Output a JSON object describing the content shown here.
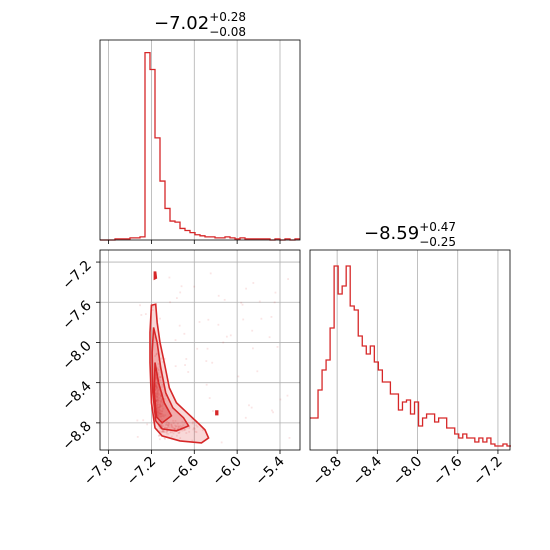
{
  "chart_data": {
    "type": "corner",
    "color": "#d62728",
    "grid": true,
    "panels": [
      {
        "id": "hist_p1",
        "type": "histogram",
        "title": {
          "main": "−7.02",
          "sup": "+0.28",
          "sub": "−0.08"
        },
        "xlim": [
          -7.92,
          -5.12
        ],
        "ticks": [
          -7.8,
          -7.2,
          -6.6,
          -6.0,
          -5.4
        ],
        "bin_edges": [
          -7.92,
          -7.85,
          -7.78,
          -7.71,
          -7.64,
          -7.57,
          -7.5,
          -7.43,
          -7.36,
          -7.29,
          -7.22,
          -7.15,
          -7.08,
          -7.01,
          -6.94,
          -6.87,
          -6.8,
          -6.73,
          -6.66,
          -6.59,
          -6.52,
          -6.45,
          -6.38,
          -6.31,
          -6.24,
          -6.17,
          -6.1,
          -6.03,
          -5.96,
          -5.89,
          -5.82,
          -5.75,
          -5.68,
          -5.61,
          -5.54,
          -5.47,
          -5.4,
          -5.33,
          -5.26,
          -5.19,
          -5.12
        ],
        "counts": [
          0,
          0,
          0,
          1,
          1,
          1,
          2,
          2,
          3,
          178,
          162,
          97,
          56,
          30,
          18,
          17,
          11,
          9,
          7,
          5,
          4,
          3,
          3,
          2,
          2,
          3,
          2,
          1,
          2,
          1,
          1,
          1,
          1,
          1,
          0,
          1,
          0,
          1,
          0,
          1
        ],
        "ymax": 190
      },
      {
        "id": "hist_p2",
        "type": "histogram",
        "title": {
          "main": "−8.59",
          "sup": "+0.47",
          "sub": "−0.25"
        },
        "xlim": [
          -9.07,
          -7.08
        ],
        "ticks": [
          -8.8,
          -8.4,
          -8.0,
          -7.6,
          -7.2
        ],
        "bin_edges": [
          -9.07,
          -9.03,
          -8.99,
          -8.95,
          -8.91,
          -8.87,
          -8.83,
          -8.79,
          -8.75,
          -8.71,
          -8.67,
          -8.63,
          -8.59,
          -8.55,
          -8.51,
          -8.47,
          -8.43,
          -8.39,
          -8.35,
          -8.31,
          -8.27,
          -8.23,
          -8.19,
          -8.15,
          -8.11,
          -8.07,
          -8.03,
          -7.99,
          -7.95,
          -7.91,
          -7.87,
          -7.83,
          -7.79,
          -7.75,
          -7.71,
          -7.67,
          -7.63,
          -7.59,
          -7.55,
          -7.51,
          -7.47,
          -7.43,
          -7.39,
          -7.35,
          -7.31,
          -7.27,
          -7.23,
          -7.19,
          -7.15,
          -7.11,
          -7.07
        ],
        "counts": [
          16,
          16,
          30,
          40,
          45,
          61,
          92,
          78,
          82,
          92,
          72,
          70,
          57,
          52,
          48,
          52,
          44,
          40,
          34,
          34,
          28,
          28,
          20,
          24,
          25,
          18,
          24,
          12,
          16,
          18,
          18,
          14,
          16,
          16,
          11,
          11,
          8,
          6,
          8,
          6,
          6,
          4,
          6,
          4,
          6,
          3,
          2,
          2,
          3,
          2
        ],
        "ymax": 100
      },
      {
        "id": "scatter_2d",
        "type": "2d-density",
        "xlim": [
          -7.92,
          -5.12
        ],
        "ylim": [
          -9.07,
          -7.08
        ],
        "xticks": [
          -7.8,
          -7.2,
          -6.6,
          -6.0,
          -5.4
        ],
        "yticks": [
          -7.2,
          -7.6,
          -8.0,
          -8.4,
          -8.8
        ],
        "levels": [
          0.393,
          0.865,
          0.989
        ]
      }
    ],
    "tick_labels": {
      "p1": [
        "−7.8",
        "−7.2",
        "−6.6",
        "−6.0",
        "−5.4"
      ],
      "p2": [
        "−8.8",
        "−8.4",
        "−8.0",
        "−7.6",
        "−7.2"
      ],
      "p2_left": [
        "−7.2",
        "−7.6",
        "−8.0",
        "−8.4",
        "−8.8"
      ]
    }
  }
}
